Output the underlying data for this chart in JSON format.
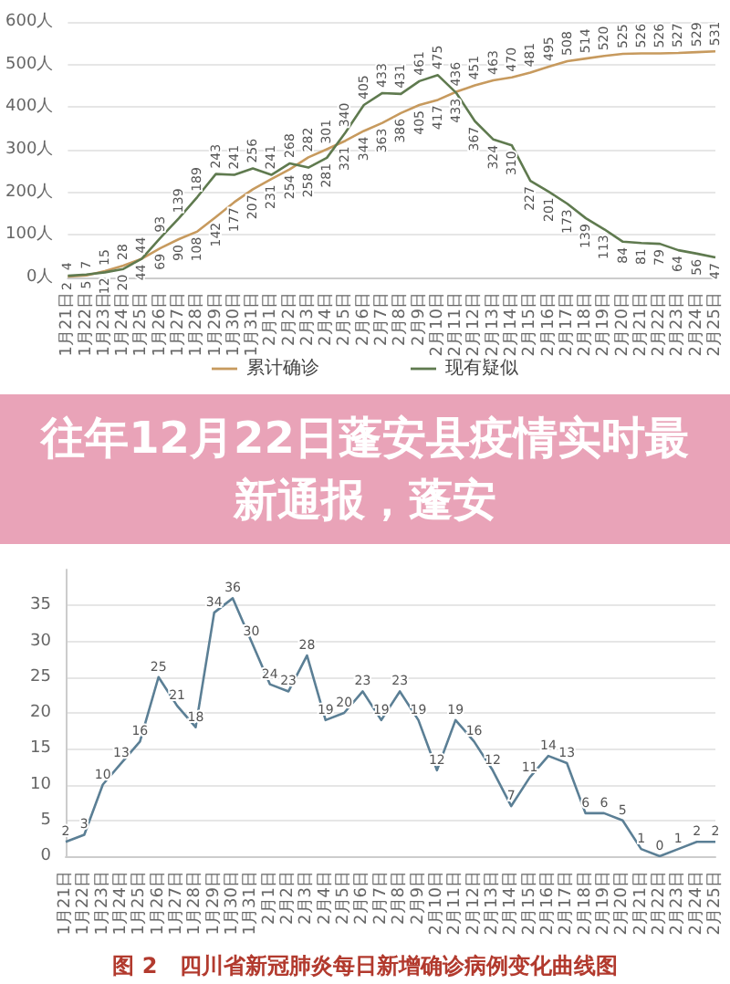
{
  "chart_data": [
    {
      "type": "line",
      "categories": [
        "1月21日",
        "1月22日",
        "1月23日",
        "1月24日",
        "1月25日",
        "1月26日",
        "1月27日",
        "1月28日",
        "1月29日",
        "1月30日",
        "1月31日",
        "2月1日",
        "2月2日",
        "2月3日",
        "2月4日",
        "2月5日",
        "2月6日",
        "2月7日",
        "2月8日",
        "2月9日",
        "2月10日",
        "2月11日",
        "2月12日",
        "2月13日",
        "2月14日",
        "2月15日",
        "2月16日",
        "2月17日",
        "2月18日",
        "2月19日",
        "2月20日",
        "2月21日",
        "2月22日",
        "2月23日",
        "2月24日",
        "2月25日"
      ],
      "series": [
        {
          "name": "累计确诊",
          "color": "#c79a5e",
          "values": [
            2,
            5,
            15,
            28,
            44,
            69,
            90,
            108,
            142,
            177,
            207,
            231,
            254,
            282,
            301,
            321,
            344,
            363,
            386,
            405,
            417,
            436,
            451,
            463,
            470,
            481,
            495,
            508,
            514,
            520,
            525,
            526,
            526,
            527,
            529,
            531
          ]
        },
        {
          "name": "现有疑似",
          "color": "#5f7a4f",
          "values": [
            4,
            7,
            12,
            20,
            44,
            93,
            139,
            189,
            243,
            241,
            256,
            241,
            268,
            258,
            281,
            340,
            405,
            433,
            431,
            461,
            475,
            433,
            367,
            324,
            310,
            227,
            201,
            173,
            139,
            113,
            84,
            81,
            79,
            64,
            56,
            47
          ]
        }
      ],
      "ylim": [
        0,
        600
      ],
      "yticks": [
        {
          "value": 0,
          "label": "0人"
        },
        {
          "value": 100,
          "label": "100人"
        },
        {
          "value": 200,
          "label": "200人"
        },
        {
          "value": 300,
          "label": "300人"
        },
        {
          "value": 400,
          "label": "400人"
        },
        {
          "value": 500,
          "label": "500人"
        },
        {
          "value": 600,
          "label": "600人"
        }
      ],
      "grid": "y",
      "legend": "bottom",
      "marker": "none",
      "data_labels": true
    },
    {
      "type": "line",
      "title": "往年12月22日蓬安县疫情实时最新通报，蓬安",
      "categories": [
        "1月21日",
        "1月22日",
        "1月23日",
        "1月24日",
        "1月25日",
        "1月26日",
        "1月27日",
        "1月28日",
        "1月29日",
        "1月30日",
        "1月31日",
        "2月1日",
        "2月2日",
        "2月3日",
        "2月4日",
        "2月5日",
        "2月6日",
        "2月7日",
        "2月8日",
        "2月9日",
        "2月10日",
        "2月11日",
        "2月12日",
        "2月13日",
        "2月14日",
        "2月15日",
        "2月16日",
        "2月17日",
        "2月18日",
        "2月19日",
        "2月20日",
        "2月21日",
        "2月22日",
        "2月23日",
        "2月24日",
        "2月25日"
      ],
      "series": [
        {
          "color": "#5b7f95",
          "values": [
            2,
            3,
            10,
            13,
            16,
            25,
            21,
            18,
            34,
            36,
            30,
            24,
            23,
            28,
            19,
            20,
            23,
            19,
            23,
            19,
            12,
            19,
            16,
            12,
            7,
            11,
            14,
            13,
            6,
            6,
            5,
            1,
            0,
            1,
            2,
            2
          ]
        }
      ],
      "ylim": [
        0,
        40
      ],
      "yticks": [
        0,
        5,
        10,
        15,
        20,
        25,
        30,
        35
      ],
      "grid": "y",
      "marker": "none",
      "data_labels": true,
      "annotations": [
        "图 2　四川省新冠肺炎每日新增确诊病例变化曲线图"
      ]
    }
  ]
}
